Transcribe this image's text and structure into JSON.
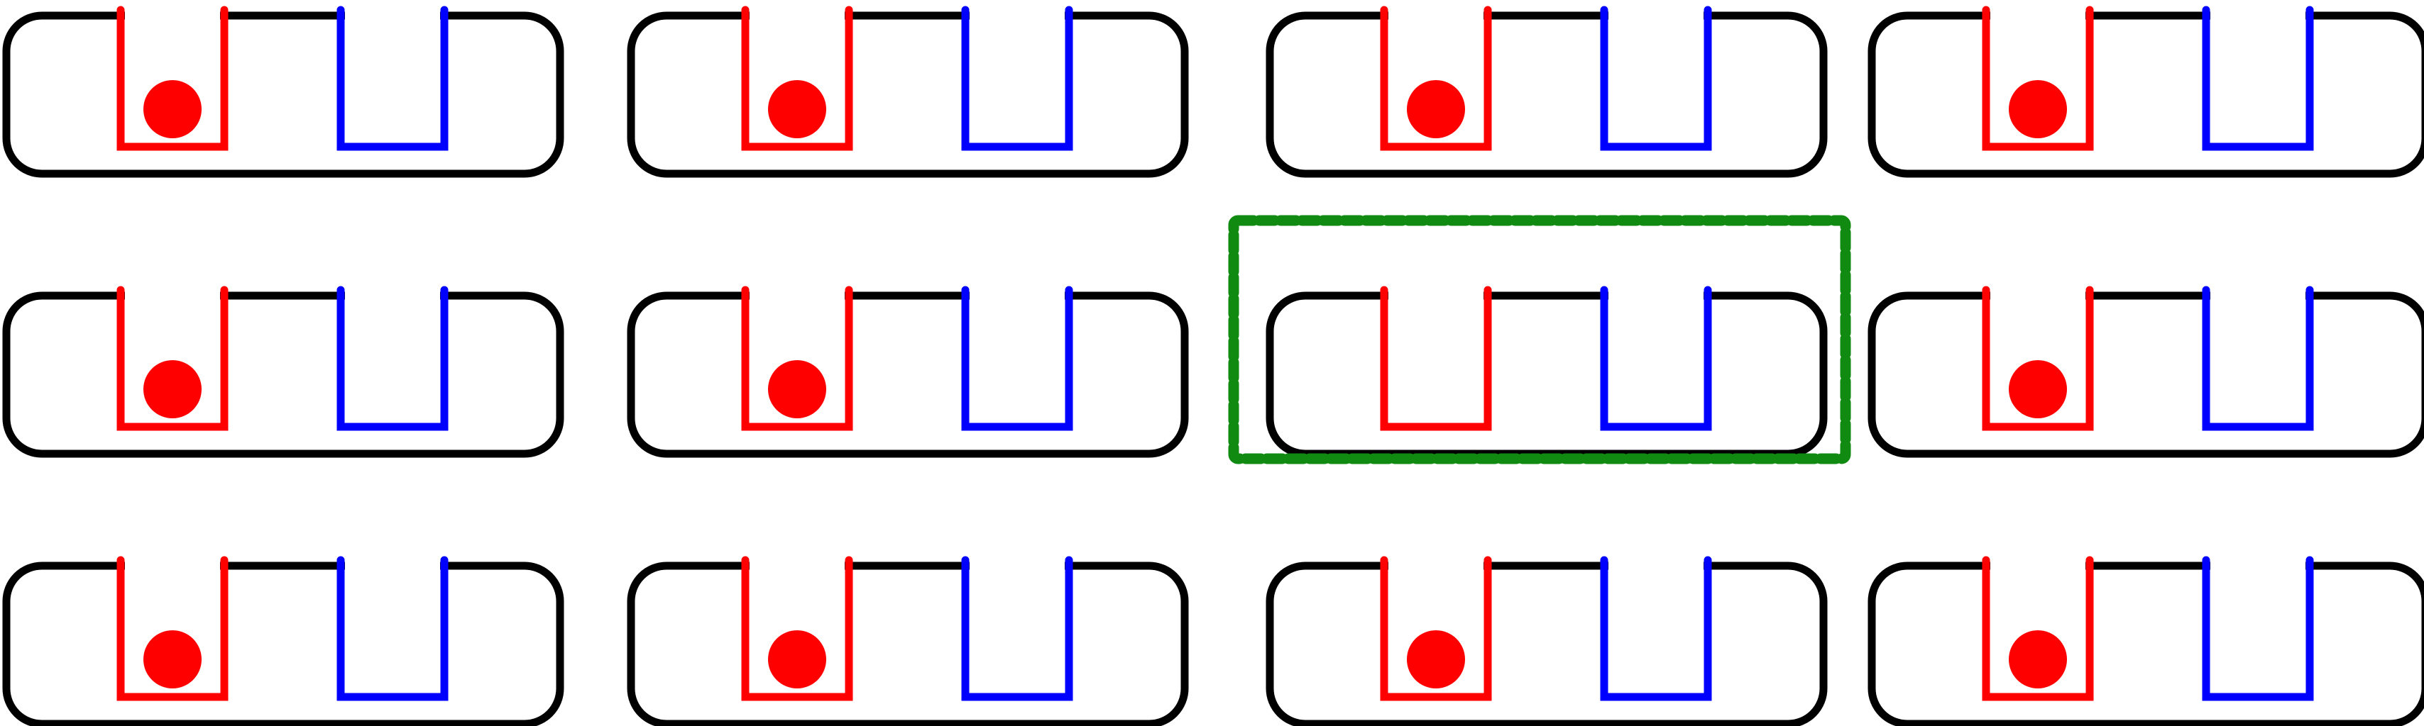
{
  "colors": {
    "background": "#ffffff",
    "outline": "#000000",
    "red": "#ff0000",
    "blue": "#0000ff",
    "highlight": "#108a10"
  },
  "grid": {
    "rows": 3,
    "cols": 4,
    "cells": [
      {
        "row": 0,
        "col": 0,
        "ball": "red"
      },
      {
        "row": 0,
        "col": 1,
        "ball": "red"
      },
      {
        "row": 0,
        "col": 2,
        "ball": "red"
      },
      {
        "row": 0,
        "col": 3,
        "ball": "red"
      },
      {
        "row": 1,
        "col": 0,
        "ball": "red"
      },
      {
        "row": 1,
        "col": 1,
        "ball": "red"
      },
      {
        "row": 1,
        "col": 2,
        "ball": "none",
        "highlighted": true
      },
      {
        "row": 1,
        "col": 3,
        "ball": "red"
      },
      {
        "row": 2,
        "col": 0,
        "ball": "red"
      },
      {
        "row": 2,
        "col": 1,
        "ball": "red"
      },
      {
        "row": 2,
        "col": 2,
        "ball": "red"
      },
      {
        "row": 2,
        "col": 3,
        "ball": "red"
      }
    ]
  }
}
